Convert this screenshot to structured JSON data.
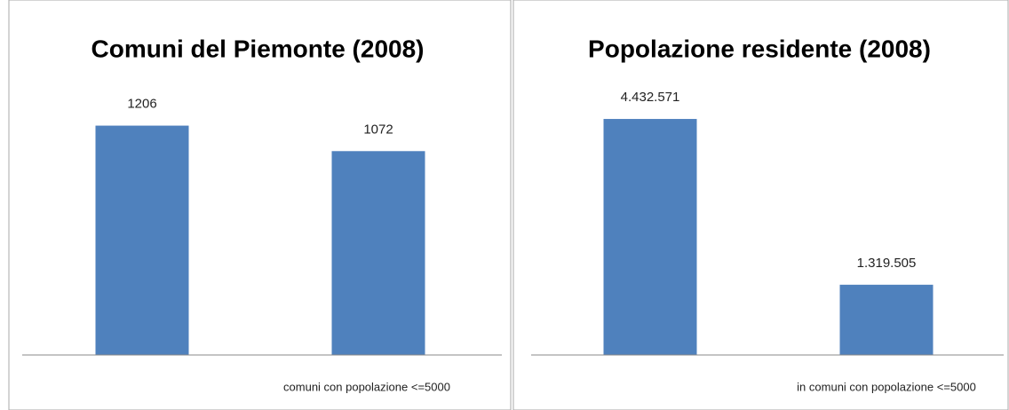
{
  "chart_data": [
    {
      "type": "bar",
      "title": "Comuni del Piemonte (2008)",
      "categories": [
        null,
        "comuni con popolazione <=5000"
      ],
      "values": [
        1206,
        1072
      ],
      "color": "#4f81bd",
      "ylim": [
        0,
        1400
      ]
    },
    {
      "type": "bar",
      "title": "Popolazione residente (2008)",
      "categories": [
        null,
        "in comuni con popolazione <=5000"
      ],
      "values": [
        4432571,
        1319505
      ],
      "value_labels": [
        "4.432.571",
        "1.319.505"
      ],
      "color": "#4f81bd",
      "ylim": [
        0,
        5000000
      ]
    }
  ]
}
